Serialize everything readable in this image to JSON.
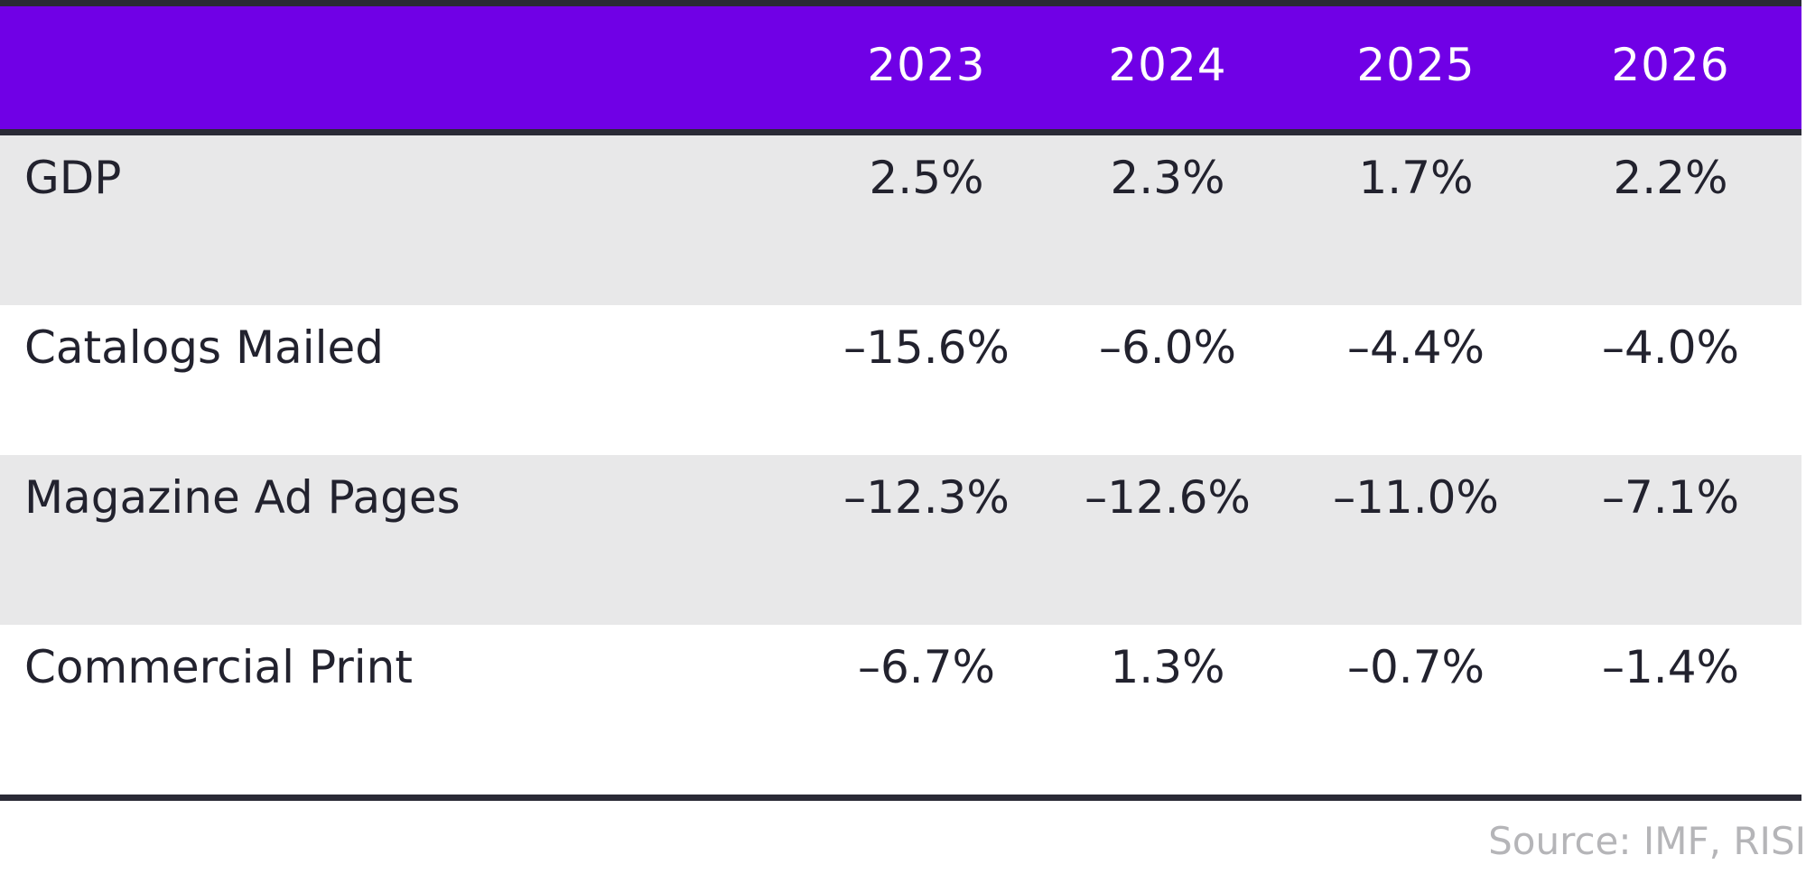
{
  "chart_data": {
    "type": "table",
    "columns": [
      "2023",
      "2024",
      "2025",
      "2026"
    ],
    "rows": [
      {
        "label": "GDP",
        "values": [
          "2.5%",
          "2.3%",
          "1.7%",
          "2.2%"
        ]
      },
      {
        "label": "Catalogs Mailed",
        "values": [
          "–15.6%",
          "–6.0%",
          "–4.4%",
          "–4.0%"
        ]
      },
      {
        "label": "Magazine Ad Pages",
        "values": [
          "–12.3%",
          "–12.6%",
          "–11.0%",
          "–7.1%"
        ]
      },
      {
        "label": "Commercial Print",
        "values": [
          "–6.7%",
          "1.3%",
          "–0.7%",
          "–1.4%"
        ]
      }
    ],
    "source": "Source: IMF, RISI"
  },
  "colors": {
    "header_bg": "#7000e6",
    "rule": "#2a2a36",
    "shade_row": "#e8e8e9",
    "text": "#22222e",
    "source_text": "#b5b5b8"
  }
}
